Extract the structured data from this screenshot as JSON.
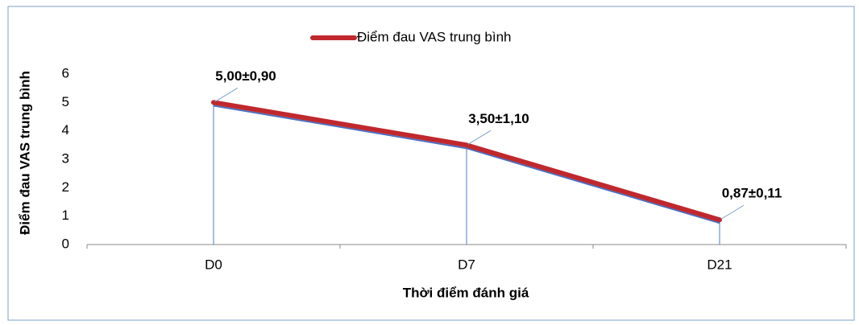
{
  "chart_data": {
    "type": "line",
    "categories": [
      "D0",
      "D7",
      "D21"
    ],
    "series": [
      {
        "name": "Điểm đau VAS trung bình",
        "color": "#c0282d",
        "values": [
          5.0,
          3.5,
          0.87
        ],
        "value_labels": [
          "5,00±0,90",
          "3,50±1,10",
          "0,87±0,11"
        ]
      }
    ],
    "ylim": [
      0,
      6
    ],
    "yticks": [
      0,
      1,
      2,
      3,
      4,
      5,
      6
    ],
    "xlabel": "Thời điểm đánh giá",
    "ylabel": "Điểm đau VAS trung bình",
    "grid": false,
    "legend": "top"
  }
}
